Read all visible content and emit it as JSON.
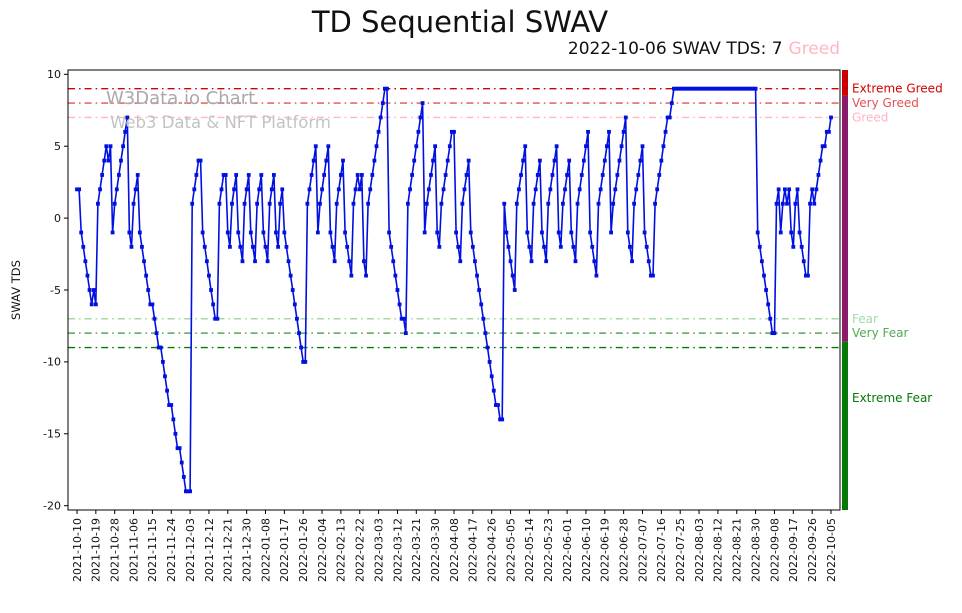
{
  "title": "TD Sequential SWAV",
  "subtitle": {
    "prefix": "2022-10-06 SWAV TDS: 7",
    "status": "Greed",
    "status_color": "#ffb6c1"
  },
  "watermark": {
    "line1": "W3Data.io Chart",
    "line2": "Web3 Data & NFT Platform"
  },
  "ylabel": "SWAV TDS",
  "colors": {
    "line": "#0010e0",
    "marker": "#0010e0",
    "axis": "#000000"
  },
  "chart_data": {
    "type": "line",
    "title": "TD Sequential SWAV",
    "xlabel": "",
    "ylabel": "SWAV TDS",
    "ylim": [
      -20.3,
      10.3
    ],
    "grid": false,
    "start_date": "2021-10-10",
    "end_date": "2022-10-05",
    "frequency": "daily",
    "x_tick_step_days": 9,
    "x_tick_labels": [
      "2021-10-10",
      "2021-10-19",
      "2021-10-28",
      "2021-11-06",
      "2021-11-15",
      "2021-11-24",
      "2021-12-03",
      "2021-12-12",
      "2021-12-21",
      "2021-12-30",
      "2022-01-08",
      "2022-01-17",
      "2022-01-26",
      "2022-02-04",
      "2022-02-13",
      "2022-02-22",
      "2022-03-03",
      "2022-03-12",
      "2022-03-21",
      "2022-03-30",
      "2022-04-08",
      "2022-04-17",
      "2022-04-26",
      "2022-05-05",
      "2022-05-14",
      "2022-05-23",
      "2022-06-01",
      "2022-06-10",
      "2022-06-19",
      "2022-06-28",
      "2022-07-07",
      "2022-07-16",
      "2022-07-25",
      "2022-08-03",
      "2022-08-12",
      "2022-08-21",
      "2022-08-30",
      "2022-09-08",
      "2022-09-17",
      "2022-09-26",
      "2022-10-05"
    ],
    "y_ticks": [
      10,
      5,
      0,
      -5,
      -10,
      -15,
      -20
    ],
    "values": [
      2,
      2,
      -1,
      -2,
      -3,
      -4,
      -5,
      -6,
      -5,
      -6,
      1,
      2,
      3,
      4,
      5,
      4,
      5,
      -1,
      1,
      2,
      3,
      4,
      5,
      6,
      7,
      -1,
      -2,
      1,
      2,
      3,
      -1,
      -2,
      -3,
      -4,
      -5,
      -6,
      -6,
      -7,
      -8,
      -9,
      -9,
      -10,
      -11,
      -12,
      -13,
      -13,
      -14,
      -15,
      -16,
      -16,
      -17,
      -18,
      -19,
      -19,
      -19,
      1,
      2,
      3,
      4,
      4,
      -1,
      -2,
      -3,
      -4,
      -5,
      -6,
      -7,
      -7,
      1,
      2,
      3,
      3,
      -1,
      -2,
      1,
      2,
      3,
      -1,
      -2,
      -3,
      1,
      2,
      3,
      -1,
      -2,
      -3,
      1,
      2,
      3,
      -1,
      -2,
      -3,
      1,
      2,
      3,
      -1,
      -2,
      1,
      2,
      -1,
      -2,
      -3,
      -4,
      -5,
      -6,
      -7,
      -8,
      -9,
      -10,
      -10,
      1,
      2,
      3,
      4,
      5,
      -1,
      1,
      2,
      3,
      4,
      5,
      -1,
      -2,
      -3,
      1,
      2,
      3,
      4,
      -1,
      -2,
      -3,
      -4,
      1,
      2,
      3,
      2,
      3,
      -3,
      -4,
      1,
      2,
      3,
      4,
      5,
      6,
      7,
      8,
      9,
      9,
      -1,
      -2,
      -3,
      -4,
      -5,
      -6,
      -7,
      -7,
      -8,
      1,
      2,
      3,
      4,
      5,
      6,
      7,
      8,
      -1,
      1,
      2,
      3,
      4,
      5,
      -1,
      -2,
      1,
      2,
      3,
      4,
      5,
      6,
      6,
      -1,
      -2,
      -3,
      1,
      2,
      3,
      4,
      -1,
      -2,
      -3,
      -4,
      -5,
      -6,
      -7,
      -8,
      -9,
      -10,
      -11,
      -12,
      -13,
      -13,
      -14,
      -14,
      1,
      -1,
      -2,
      -3,
      -4,
      -5,
      1,
      2,
      3,
      4,
      5,
      -1,
      -2,
      -3,
      1,
      2,
      3,
      4,
      -1,
      -2,
      -3,
      1,
      2,
      3,
      4,
      5,
      -1,
      -2,
      1,
      2,
      3,
      4,
      -1,
      -2,
      -3,
      1,
      2,
      3,
      4,
      5,
      6,
      -1,
      -2,
      -3,
      -4,
      1,
      2,
      3,
      4,
      5,
      6,
      -1,
      1,
      2,
      3,
      4,
      5,
      6,
      7,
      -1,
      -2,
      -3,
      1,
      2,
      3,
      4,
      5,
      -1,
      -2,
      -3,
      -4,
      -4,
      1,
      2,
      3,
      4,
      5,
      6,
      7,
      7,
      8,
      9,
      9,
      9,
      9,
      9,
      9,
      9,
      9,
      9,
      9,
      9,
      9,
      9,
      9,
      9,
      9,
      9,
      9,
      9,
      9,
      9,
      9,
      9,
      9,
      9,
      9,
      9,
      9,
      9,
      9,
      9,
      9,
      9,
      9,
      9,
      9,
      9,
      9,
      9,
      9,
      -1,
      -2,
      -3,
      -4,
      -5,
      -6,
      -7,
      -8,
      -8,
      1,
      2,
      -1,
      1,
      2,
      1,
      2,
      -1,
      -2,
      1,
      2,
      -1,
      -2,
      -3,
      -4,
      -4,
      1,
      2,
      1,
      2,
      3,
      4,
      5,
      5,
      6,
      6,
      7
    ],
    "thresholds": [
      {
        "label": "Extreme Greed",
        "value": 9,
        "color": "#d40000"
      },
      {
        "label": "Very Greed",
        "value": 8,
        "color": "#e05252"
      },
      {
        "label": "Greed",
        "value": 7,
        "color": "#ffb6c1"
      },
      {
        "label": "Fear",
        "value": -7,
        "color": "#a6d9a6"
      },
      {
        "label": "Very Fear",
        "value": -8,
        "color": "#55a855"
      },
      {
        "label": "Extreme Fear",
        "value": -9,
        "color": "#067806"
      }
    ],
    "right_bands": [
      {
        "from": 10.3,
        "to": 8.5,
        "color": "#cc0000"
      },
      {
        "from": 8.5,
        "to": -8.6,
        "color": "#8b1a6b"
      },
      {
        "from": -8.6,
        "to": -20.3,
        "color": "#067806"
      }
    ],
    "right_labels": [
      {
        "text": "Extreme Greed",
        "value": 9,
        "color": "#d40000"
      },
      {
        "text": "Very Greed",
        "value": 8,
        "color": "#e05252"
      },
      {
        "text": "Greed",
        "value": 7,
        "color": "#ffb6c1"
      },
      {
        "text": "Fear",
        "value": -7,
        "color": "#a6d9a6"
      },
      {
        "text": "Very Fear",
        "value": -8,
        "color": "#55a855"
      },
      {
        "text": "Extreme Fear",
        "value": -12.5,
        "color": "#067806"
      }
    ],
    "legend": "none"
  }
}
